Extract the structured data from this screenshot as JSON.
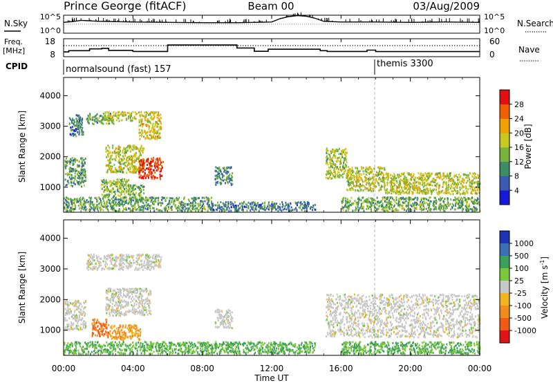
{
  "header": {
    "station": "Prince George (fitACF)",
    "beam": "Beam 00",
    "date": "03/Aug/2009"
  },
  "sky_panel": {
    "left_label": "N.Sky",
    "right_label": "N.Search",
    "left_ticks": [
      "10^5",
      "10^0"
    ],
    "right_ticks": [
      "10^5",
      "10^0"
    ]
  },
  "freq_panel": {
    "left_label_1": "Freq.",
    "left_label_2": "[MHz]",
    "right_label": "Nave",
    "left_ticks": [
      "18",
      "8"
    ],
    "right_ticks": [
      "60",
      "0"
    ]
  },
  "cpid_panel": {
    "label": "CPID",
    "programs": [
      {
        "name": "normalsound (fast) 157",
        "start": "00:00"
      },
      {
        "name": "themis 3300",
        "start": "18:00"
      }
    ]
  },
  "time_axis": {
    "label": "Time UT",
    "ticks": [
      "00:00",
      "04:00",
      "08:00",
      "12:00",
      "16:00",
      "20:00",
      "00:00"
    ]
  },
  "colorbars": {
    "power": {
      "label": "Power [dB]",
      "ticks": [
        "28",
        "24",
        "20",
        "16",
        "12",
        "8",
        "4"
      ],
      "colors": [
        "#1818d8",
        "#3c5ab4",
        "#3c8c64",
        "#78b43c",
        "#c8c820",
        "#f0a000",
        "#f06000",
        "#e01010"
      ]
    },
    "velocity": {
      "label": "Velocity [m s",
      "label_sup": "-1",
      "label_end": "]",
      "ticks": [
        "1000",
        "500",
        "100",
        "25",
        "-25",
        "-100",
        "-500",
        "-1000"
      ],
      "colors": [
        "#1e32b4",
        "#3c6eb4",
        "#3ca05a",
        "#78c83c",
        "#c8c8c8",
        "#f0b41e",
        "#f08c1e",
        "#f05a14",
        "#e01414"
      ]
    }
  },
  "chart_data": [
    {
      "type": "heatmap",
      "title": "Power",
      "xlabel": "Time UT",
      "ylabel": "Slant Range [km]",
      "xlim": [
        0,
        24
      ],
      "ylim": [
        180,
        4600
      ],
      "yticks": [
        "1000",
        "2000",
        "3000",
        "4000"
      ],
      "colorbar_range": [
        0,
        30
      ],
      "regions": [
        {
          "t": [
            0.05,
            1.25
          ],
          "r": [
            1050,
            2000
          ],
          "value": 11
        },
        {
          "t": [
            0.3,
            1.1
          ],
          "r": [
            2700,
            3300
          ],
          "value": 8
        },
        {
          "t": [
            0.7,
            1.0
          ],
          "r": [
            2950,
            3400
          ],
          "value": 9
        },
        {
          "t": [
            1.3,
            2.9
          ],
          "r": [
            3100,
            3450
          ],
          "value": 12
        },
        {
          "t": [
            2.2,
            4.2
          ],
          "r": [
            3200,
            3500
          ],
          "value": 16
        },
        {
          "t": [
            4.3,
            5.6
          ],
          "r": [
            2600,
            3500
          ],
          "value": 18
        },
        {
          "t": [
            2.4,
            4.6
          ],
          "r": [
            1500,
            2400
          ],
          "value": 16
        },
        {
          "t": [
            4.3,
            5.7
          ],
          "r": [
            1300,
            2000
          ],
          "value": 27
        },
        {
          "t": [
            2.1,
            3.8
          ],
          "r": [
            700,
            1300
          ],
          "value": 14
        },
        {
          "t": [
            3.8,
            4.6
          ],
          "r": [
            600,
            1100
          ],
          "value": 12
        },
        {
          "t": [
            8.7,
            9.7
          ],
          "r": [
            1100,
            1700
          ],
          "value": 9
        },
        {
          "t": [
            15.1,
            16.3
          ],
          "r": [
            1300,
            2300
          ],
          "value": 15
        },
        {
          "t": [
            16.3,
            18.5
          ],
          "r": [
            900,
            1700
          ],
          "value": 16
        },
        {
          "t": [
            18.5,
            24.0
          ],
          "r": [
            800,
            1500
          ],
          "value": 16
        },
        {
          "t": [
            0.0,
            8.5
          ],
          "r": [
            250,
            700
          ],
          "value": 11
        },
        {
          "t": [
            8.5,
            14.5
          ],
          "r": [
            250,
            550
          ],
          "value": 8
        },
        {
          "t": [
            16.0,
            24.0
          ],
          "r": [
            250,
            700
          ],
          "value": 12
        }
      ]
    },
    {
      "type": "heatmap",
      "title": "Velocity",
      "xlabel": "Time UT",
      "ylabel": "Slant Range [km]",
      "xlim": [
        0,
        24
      ],
      "ylim": [
        180,
        4600
      ],
      "yticks": [
        "1000",
        "2000",
        "3000",
        "4000"
      ],
      "colorbar_range": [
        -1000,
        1000
      ],
      "regions": [
        {
          "t": [
            0.05,
            1.25
          ],
          "r": [
            1050,
            2000
          ],
          "value": 0
        },
        {
          "t": [
            1.3,
            5.6
          ],
          "r": [
            3000,
            3500
          ],
          "value": 0
        },
        {
          "t": [
            2.4,
            5.0
          ],
          "r": [
            1500,
            2400
          ],
          "value": 0
        },
        {
          "t": [
            1.6,
            2.6
          ],
          "r": [
            800,
            1400
          ],
          "value": -500
        },
        {
          "t": [
            2.6,
            4.4
          ],
          "r": [
            700,
            1200
          ],
          "value": -100
        },
        {
          "t": [
            8.7,
            9.7
          ],
          "r": [
            1100,
            1700
          ],
          "value": 0
        },
        {
          "t": [
            15.1,
            24.0
          ],
          "r": [
            800,
            2200
          ],
          "value": 0
        },
        {
          "t": [
            0.0,
            14.5
          ],
          "r": [
            250,
            650
          ],
          "value": 100
        },
        {
          "t": [
            16.0,
            24.0
          ],
          "r": [
            250,
            650
          ],
          "value": 100
        }
      ]
    },
    {
      "type": "line",
      "title": "N.Sky",
      "x": [
        0.0,
        0.5,
        1.0,
        2.0,
        4.0,
        6.0,
        8.0,
        10.0,
        12.0,
        12.5,
        13.0,
        13.5,
        14.0,
        14.5,
        15.0,
        16.0,
        18.0,
        20.0,
        22.0,
        24.0
      ],
      "y": [
        3.2,
        3.4,
        3.8,
        3.5,
        3.3,
        3.2,
        3.1,
        3.1,
        3.3,
        4.3,
        4.9,
        5.2,
        5.0,
        4.4,
        3.5,
        3.3,
        3.3,
        3.2,
        3.3,
        3.2
      ]
    },
    {
      "type": "line",
      "title": "Freq. [MHz]",
      "x": [
        0.0,
        0.3,
        0.3,
        1.5,
        1.5,
        2.2,
        2.2,
        2.6,
        2.6,
        4.0,
        4.0,
        6.0,
        6.0,
        10.0,
        10.0,
        11.0,
        11.0,
        11.8,
        11.8,
        14.8,
        14.8,
        15.2,
        15.2,
        17.5,
        17.5,
        18.0,
        18.0,
        24.0
      ],
      "y": [
        10.2,
        10.2,
        11.0,
        11.0,
        12.2,
        12.2,
        12.6,
        12.6,
        11.2,
        11.2,
        10.5,
        10.5,
        14.8,
        14.8,
        12.8,
        12.8,
        10.6,
        10.6,
        12.0,
        12.0,
        11.0,
        11.0,
        10.5,
        10.5,
        11.4,
        11.4,
        10.4,
        10.4
      ]
    },
    {
      "type": "line",
      "title": "Nave",
      "x": [
        0,
        24
      ],
      "y": [
        37,
        37
      ]
    }
  ]
}
